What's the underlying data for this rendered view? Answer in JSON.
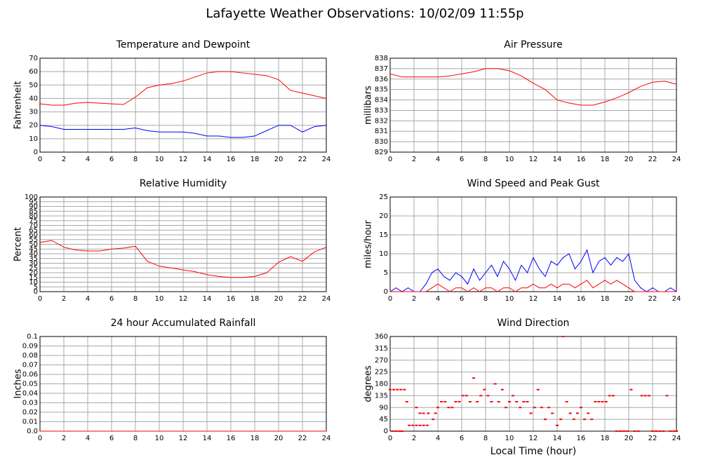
{
  "title": "Lafayette Weather Observations: 10/02/09 11:55p",
  "chart_data": [
    {
      "type": "line",
      "title": "Temperature and Dewpoint",
      "ylabel": "Fahrenheit",
      "x": [
        0,
        1,
        2,
        3,
        4,
        5,
        6,
        7,
        8,
        9,
        10,
        11,
        12,
        13,
        14,
        15,
        16,
        17,
        18,
        19,
        20,
        21,
        22,
        23,
        24
      ],
      "series": [
        {
          "color": "#ff0000",
          "values": [
            36,
            35,
            35,
            36.5,
            37,
            36.5,
            36,
            35.5,
            41,
            48,
            50,
            51,
            53,
            56,
            59,
            60,
            60,
            59,
            58,
            57,
            54,
            46,
            44,
            42,
            40
          ]
        },
        {
          "color": "#0000ff",
          "values": [
            20,
            19,
            17,
            17,
            17,
            17,
            17,
            17,
            18,
            16,
            15,
            15,
            15,
            14,
            12,
            12,
            11,
            11,
            12,
            16,
            20,
            20,
            15,
            19,
            20
          ]
        }
      ],
      "xlim": [
        0,
        24
      ],
      "xticks": [
        0,
        2,
        4,
        6,
        8,
        10,
        12,
        14,
        16,
        18,
        20,
        22,
        24
      ],
      "ylim": [
        0,
        70
      ],
      "yticks": [
        0,
        10,
        20,
        30,
        40,
        50,
        60,
        70
      ],
      "grid": true
    },
    {
      "type": "line",
      "title": "Air Pressure",
      "ylabel": "millibars",
      "x": [
        0,
        1,
        2,
        3,
        4,
        5,
        6,
        7,
        8,
        9,
        10,
        11,
        12,
        13,
        14,
        15,
        16,
        17,
        18,
        19,
        20,
        21,
        22,
        23,
        24
      ],
      "series": [
        {
          "color": "#ff0000",
          "values": [
            836.5,
            836.2,
            836.2,
            836.2,
            836.2,
            836.3,
            836.5,
            836.7,
            837,
            837,
            836.8,
            836.3,
            835.6,
            835,
            834,
            833.7,
            833.5,
            833.5,
            833.8,
            834.2,
            834.7,
            835.3,
            835.7,
            835.8,
            835.5
          ]
        }
      ],
      "xlim": [
        0,
        24
      ],
      "xticks": [
        0,
        2,
        4,
        6,
        8,
        10,
        12,
        14,
        16,
        18,
        20,
        22,
        24
      ],
      "ylim": [
        829,
        838
      ],
      "yticks": [
        829,
        830,
        831,
        832,
        833,
        834,
        835,
        836,
        837,
        838
      ],
      "grid": true
    },
    {
      "type": "line",
      "title": "Relative Humidity",
      "ylabel": "Percent",
      "x": [
        0,
        1,
        2,
        3,
        4,
        5,
        6,
        7,
        8,
        9,
        10,
        11,
        12,
        13,
        14,
        15,
        16,
        17,
        18,
        19,
        20,
        21,
        22,
        23,
        24
      ],
      "series": [
        {
          "color": "#ff0000",
          "values": [
            52,
            54,
            47,
            44,
            43,
            43,
            45,
            46,
            48,
            32,
            27,
            25,
            23,
            21,
            18,
            16,
            15,
            15,
            16,
            20,
            31,
            37,
            32,
            42,
            47
          ]
        }
      ],
      "xlim": [
        0,
        24
      ],
      "xticks": [
        0,
        2,
        4,
        6,
        8,
        10,
        12,
        14,
        16,
        18,
        20,
        22,
        24
      ],
      "ylim": [
        0,
        100
      ],
      "yticks": [
        0,
        5,
        10,
        15,
        20,
        25,
        30,
        35,
        40,
        45,
        50,
        55,
        60,
        65,
        70,
        75,
        80,
        85,
        90,
        95,
        100
      ],
      "grid": true
    },
    {
      "type": "line",
      "title": "Wind Speed and Peak Gust",
      "ylabel": "miles/hour",
      "x": [
        0,
        0.5,
        1,
        1.5,
        2,
        2.5,
        3,
        3.5,
        4,
        4.5,
        5,
        5.5,
        6,
        6.5,
        7,
        7.5,
        8,
        8.5,
        9,
        9.5,
        10,
        10.5,
        11,
        11.5,
        12,
        12.5,
        13,
        13.5,
        14,
        14.5,
        15,
        15.5,
        16,
        16.5,
        17,
        17.5,
        18,
        18.5,
        19,
        19.5,
        20,
        20.5,
        21,
        21.5,
        22,
        22.5,
        23,
        23.5,
        24
      ],
      "series": [
        {
          "color": "#0000ff",
          "values": [
            0,
            1,
            0,
            1,
            0,
            0,
            2,
            5,
            6,
            4,
            3,
            5,
            4,
            2,
            6,
            3,
            5,
            7,
            4,
            8,
            6,
            3,
            7,
            5,
            9,
            6,
            4,
            8,
            7,
            9,
            10,
            6,
            8,
            11,
            5,
            8,
            9,
            7,
            9,
            8,
            10,
            3,
            1,
            0,
            1,
            0,
            0,
            1,
            0
          ]
        },
        {
          "color": "#ff0000",
          "values": [
            0,
            0,
            0,
            0,
            0,
            0,
            0,
            1,
            2,
            1,
            0,
            1,
            1,
            0,
            1,
            0,
            1,
            1,
            0,
            1,
            1,
            0,
            1,
            1,
            2,
            1,
            1,
            2,
            1,
            2,
            2,
            1,
            2,
            3,
            1,
            2,
            3,
            2,
            3,
            2,
            1,
            0,
            0,
            0,
            0,
            0,
            0,
            0,
            0
          ]
        }
      ],
      "xlim": [
        0,
        24
      ],
      "xticks": [
        0,
        2,
        4,
        6,
        8,
        10,
        12,
        14,
        16,
        18,
        20,
        22,
        24
      ],
      "ylim": [
        0,
        25
      ],
      "yticks": [
        0,
        5,
        10,
        15,
        20,
        25
      ],
      "grid": true
    },
    {
      "type": "line",
      "title": "24 hour Accumulated Rainfall",
      "ylabel": "Inches",
      "x": [
        0,
        1,
        2,
        3,
        4,
        5,
        6,
        7,
        8,
        9,
        10,
        11,
        12,
        13,
        14,
        15,
        16,
        17,
        18,
        19,
        20,
        21,
        22,
        23,
        24
      ],
      "series": [
        {
          "color": "#ff0000",
          "values": [
            0,
            0,
            0,
            0,
            0,
            0,
            0,
            0,
            0,
            0,
            0,
            0,
            0,
            0,
            0,
            0,
            0,
            0,
            0,
            0,
            0,
            0,
            0,
            0,
            0
          ]
        }
      ],
      "xlim": [
        0,
        24
      ],
      "xticks": [
        0,
        2,
        4,
        6,
        8,
        10,
        12,
        14,
        16,
        18,
        20,
        22,
        24
      ],
      "ylim": [
        0,
        0.1
      ],
      "yticks": [
        {
          "value": 0,
          "label": "0.0"
        },
        0.01,
        0.02,
        0.03,
        0.04,
        0.05,
        0.06,
        0.07,
        0.08,
        0.09,
        0.1
      ],
      "grid": true
    },
    {
      "type": "scatter",
      "title": "Wind Direction",
      "ylabel": "degrees",
      "xlabel": "Local Time (hour)",
      "x": [
        0,
        0.3,
        0.6,
        0.9,
        1.2,
        0.2,
        0.5,
        0.8,
        1.0,
        1.4,
        1.6,
        1.9,
        2.2,
        2.5,
        2.8,
        3.1,
        2.2,
        2.5,
        2.8,
        3.2,
        3.6,
        3.8,
        4.0,
        4.3,
        4.6,
        4.9,
        5.2,
        5.5,
        5.8,
        6.1,
        6.4,
        6.7,
        7.0,
        7.3,
        7.6,
        7.9,
        8.2,
        8.5,
        8.8,
        9.1,
        9.4,
        9.7,
        10.0,
        10.3,
        10.6,
        10.9,
        11.2,
        11.5,
        11.8,
        12.1,
        12.4,
        12.7,
        13.0,
        13.3,
        13.6,
        14.0,
        14.3,
        14.5,
        14.8,
        15.1,
        15.4,
        15.7,
        16.0,
        16.3,
        16.6,
        16.9,
        17.2,
        17.5,
        17.8,
        18.1,
        18.4,
        18.7,
        19.0,
        19.3,
        19.6,
        19.9,
        20.2,
        20.5,
        20.8,
        21.1,
        21.4,
        21.7,
        22.0,
        22.3,
        22.6,
        22.9,
        23.2,
        23.5,
        23.8,
        24.0
      ],
      "series": [
        {
          "color": "#ff0000",
          "values": [
            158,
            158,
            158,
            158,
            158,
            0,
            0,
            0,
            0,
            112,
            22,
            22,
            22,
            22,
            22,
            22,
            90,
            68,
            68,
            68,
            45,
            68,
            90,
            112,
            112,
            90,
            90,
            112,
            112,
            135,
            135,
            112,
            202,
            112,
            135,
            158,
            135,
            112,
            180,
            112,
            158,
            90,
            112,
            135,
            112,
            90,
            112,
            112,
            68,
            90,
            158,
            90,
            45,
            90,
            68,
            22,
            45,
            360,
            112,
            68,
            45,
            68,
            90,
            45,
            68,
            45,
            112,
            112,
            112,
            112,
            135,
            135,
            0,
            0,
            0,
            0,
            158,
            0,
            0,
            135,
            135,
            135,
            0,
            0,
            0,
            0,
            135,
            0,
            0,
            0
          ]
        }
      ],
      "xlim": [
        0,
        24
      ],
      "xticks": [
        0,
        2,
        4,
        6,
        8,
        10,
        12,
        14,
        16,
        18,
        20,
        22,
        24
      ],
      "ylim": [
        0,
        360
      ],
      "yticks": [
        0,
        45,
        90,
        135,
        180,
        225,
        270,
        315,
        360
      ],
      "grid": true
    }
  ]
}
